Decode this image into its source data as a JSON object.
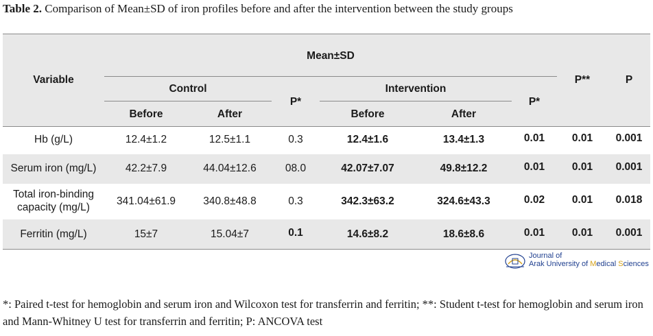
{
  "caption": {
    "label": "Table 2.",
    "text": " Comparison of Mean±SD of iron profiles before and after the intervention between the study groups"
  },
  "headers": {
    "variable": "Variable",
    "meansd": "Mean±SD",
    "control": "Control",
    "intervention": "Intervention",
    "before": "Before",
    "after": "After",
    "p_star": "P*",
    "p_double_star": "P**",
    "p": "P"
  },
  "rows": [
    {
      "variable": "Hb (g/L)",
      "c_before": "12.4±1.2",
      "c_after": "12.5±1.1",
      "c_p": "0.3",
      "i_before": "12.4±1.6",
      "i_after": "13.4±1.3",
      "i_p": "0.01",
      "p2": "0.01",
      "p": "0.001"
    },
    {
      "variable": "Serum iron (mg/L)",
      "c_before": "42.2±7.9",
      "c_after": "44.04±12.6",
      "c_p": "08.0",
      "i_before": "42.07±7.07",
      "i_after": "49.8±12.2",
      "i_p": "0.01",
      "p2": "0.01",
      "p": "0.001"
    },
    {
      "variable_line1": "Total iron-binding",
      "variable_line2": "capacity (mg/L)",
      "c_before": "341.04±61.9",
      "c_after": "340.8±48.8",
      "c_p": "0.3",
      "i_before": "342.3±63.2",
      "i_after": "324.6±43.3",
      "i_p": "0.02",
      "p2": "0.01",
      "p": "0.018"
    },
    {
      "variable": "Ferritin (mg/L)",
      "c_before": "15±7",
      "c_after": "15.04±7",
      "c_p": "0.1",
      "i_before": "14.6±8.2",
      "i_after": "18.6±8.6",
      "i_p": "0.01",
      "p2": "0.01",
      "p": "0.001"
    }
  ],
  "logo": {
    "line1": "Journal of",
    "line2_a": "Arak University of ",
    "line2_m": "M",
    "line2_b": "edical ",
    "line2_s": "S",
    "line2_c": "ciences",
    "accent": "#d4a017",
    "brand": "#1f3f8f"
  },
  "footnote": "*: Paired t-test for hemoglobin and serum iron and Wilcoxon test for transferrin and ferritin; **: Student t-test for hemoglobin and serum iron and Mann-Whitney U test for transferrin and ferritin; P: ANCOVA test"
}
